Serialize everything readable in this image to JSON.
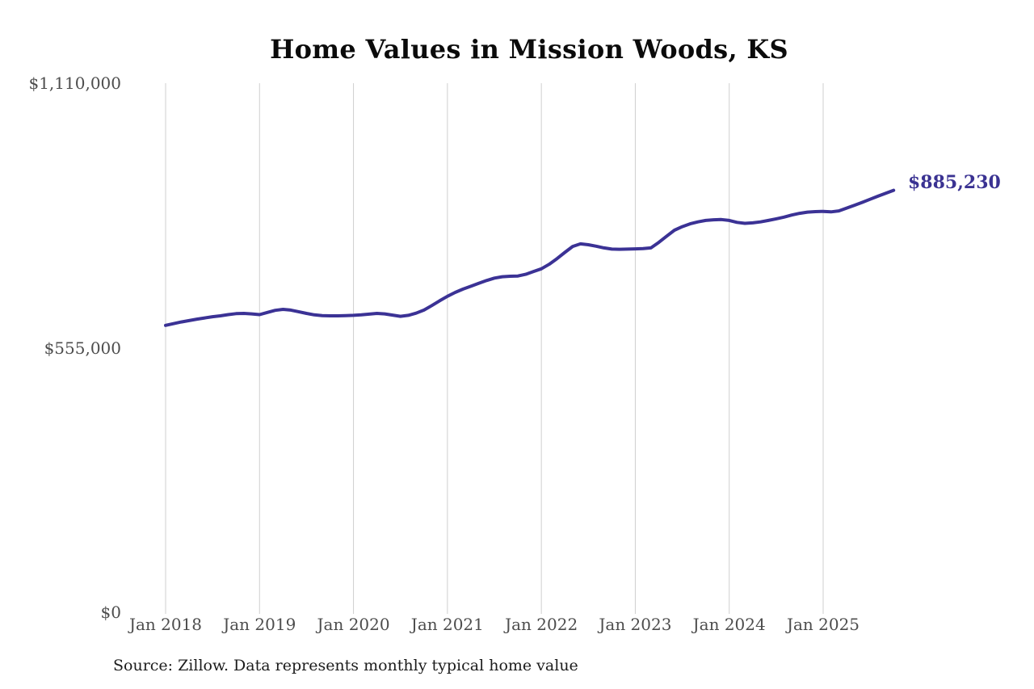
{
  "chart_data": {
    "type": "line",
    "title": "Home Values in Mission Woods, KS",
    "source_note": "Source: Zillow. Data represents monthly typical home value",
    "end_label": "$885,230",
    "series_name": "Monthly typical home value",
    "xlabel": "",
    "ylabel": "",
    "ylim": [
      0,
      1110000
    ],
    "grid": "vertical-only",
    "legend": "none",
    "colors": {
      "line": "#3b3295",
      "end_label": "#3a3292",
      "gridline": "#cfcfcf",
      "axis_text": "#4d4d4d",
      "title_text": "#0b0b0b",
      "source_text": "#1c1c1c"
    },
    "y_ticks": [
      {
        "label": "$1,110,000",
        "value": 1110000
      },
      {
        "label": "$555,000",
        "value": 555000
      },
      {
        "label": "$0",
        "value": 0
      }
    ],
    "x_ticks": [
      {
        "label": "Jan 2018",
        "month_index": 0
      },
      {
        "label": "Jan 2019",
        "month_index": 12
      },
      {
        "label": "Jan 2020",
        "month_index": 24
      },
      {
        "label": "Jan 2021",
        "month_index": 36
      },
      {
        "label": "Jan 2022",
        "month_index": 48
      },
      {
        "label": "Jan 2023",
        "month_index": 60
      },
      {
        "label": "Jan 2024",
        "month_index": 72
      },
      {
        "label": "Jan 2025",
        "month_index": 84
      }
    ],
    "categories": [
      "2018-01",
      "2018-02",
      "2018-03",
      "2018-04",
      "2018-05",
      "2018-06",
      "2018-07",
      "2018-08",
      "2018-09",
      "2018-10",
      "2018-11",
      "2018-12",
      "2019-01",
      "2019-02",
      "2019-03",
      "2019-04",
      "2019-05",
      "2019-06",
      "2019-07",
      "2019-08",
      "2019-09",
      "2019-10",
      "2019-11",
      "2019-12",
      "2020-01",
      "2020-02",
      "2020-03",
      "2020-04",
      "2020-05",
      "2020-06",
      "2020-07",
      "2020-08",
      "2020-09",
      "2020-10",
      "2020-11",
      "2020-12",
      "2021-01",
      "2021-02",
      "2021-03",
      "2021-04",
      "2021-05",
      "2021-06",
      "2021-07",
      "2021-08",
      "2021-09",
      "2021-10",
      "2021-11",
      "2021-12",
      "2022-01",
      "2022-02",
      "2022-03",
      "2022-04",
      "2022-05",
      "2022-06",
      "2022-07",
      "2022-08",
      "2022-09",
      "2022-10",
      "2022-11",
      "2022-12",
      "2023-01",
      "2023-02",
      "2023-03",
      "2023-04",
      "2023-05",
      "2023-06",
      "2023-07",
      "2023-08",
      "2023-09",
      "2023-10",
      "2023-11",
      "2023-12",
      "2024-01",
      "2024-02",
      "2024-03",
      "2024-04",
      "2024-05",
      "2024-06",
      "2024-07",
      "2024-08",
      "2024-09",
      "2024-10",
      "2024-11",
      "2024-12",
      "2025-01",
      "2025-02",
      "2025-03",
      "2025-04",
      "2025-05",
      "2025-06",
      "2025-07",
      "2025-08",
      "2025-09",
      "2025-10"
    ],
    "values": [
      602000,
      605500,
      609000,
      612000,
      615000,
      617500,
      620000,
      622000,
      624500,
      626500,
      627000,
      626000,
      624500,
      629000,
      633500,
      635500,
      634000,
      630500,
      627000,
      624000,
      622500,
      622000,
      622000,
      622500,
      623000,
      624000,
      625500,
      627000,
      626000,
      623500,
      621000,
      623000,
      627500,
      634000,
      643500,
      653500,
      663000,
      671000,
      678000,
      684000,
      690000,
      696000,
      701000,
      704000,
      705000,
      705500,
      709000,
      715000,
      720500,
      730000,
      742000,
      755000,
      767500,
      773000,
      771000,
      768000,
      764500,
      762000,
      761500,
      762000,
      762500,
      763000,
      764500,
      776000,
      789000,
      801500,
      809000,
      815000,
      819000,
      822000,
      823500,
      824000,
      822000,
      818000,
      816000,
      817000,
      819000,
      822000,
      825500,
      829000,
      833500,
      837000,
      839500,
      840500,
      841000,
      840000,
      842000,
      848000,
      854000,
      860000,
      866500,
      873000,
      879000,
      885230
    ]
  }
}
